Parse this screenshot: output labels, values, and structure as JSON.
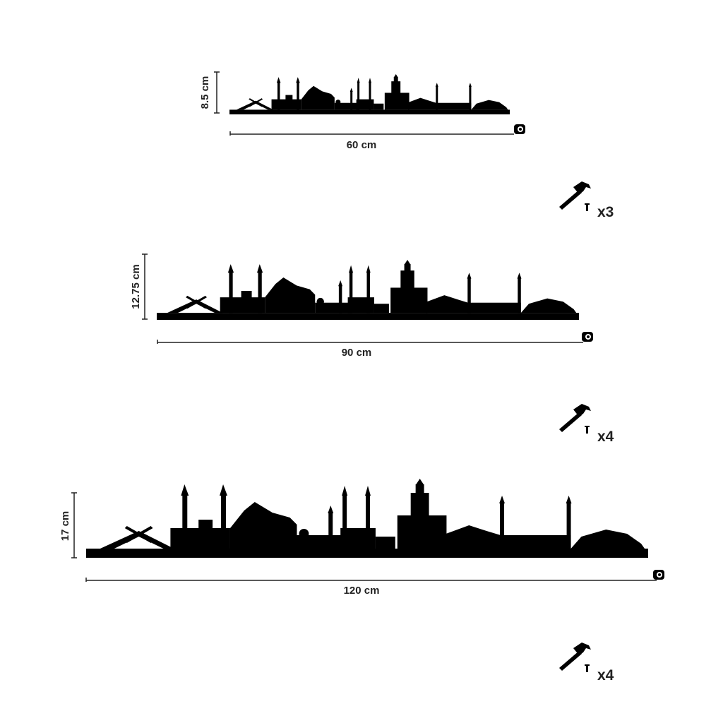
{
  "items": [
    {
      "height": "8.5 cm",
      "width": "60 cm",
      "nails": "x3"
    },
    {
      "height": "12.75 cm",
      "width": "90 cm",
      "nails": "x4"
    },
    {
      "height": "17 cm",
      "width": "120 cm",
      "nails": "x4"
    }
  ]
}
